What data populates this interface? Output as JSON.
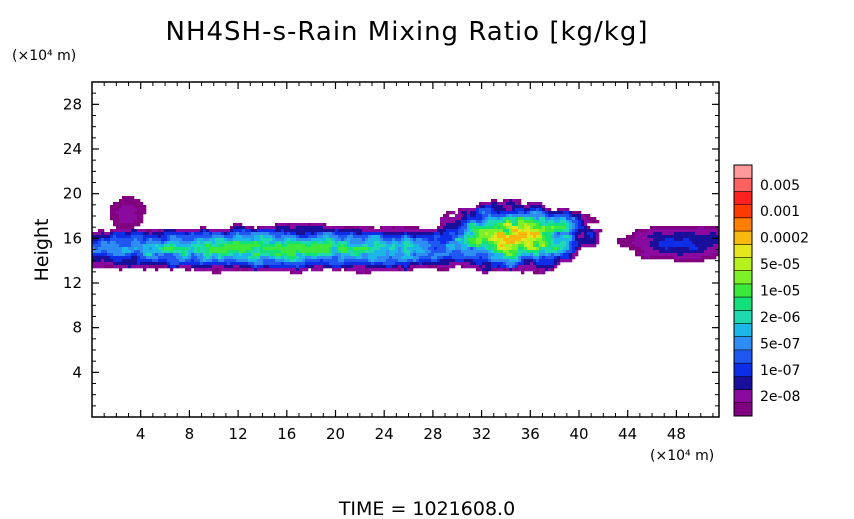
{
  "chart_data": {
    "type": "heatmap",
    "title": "NH4SH-s-Rain Mixing Ratio [kg/kg]",
    "xlabel": "",
    "ylabel": "Height",
    "x_unit": "(×10⁴ m)",
    "y_unit": "(×10⁴ m)",
    "xlim": [
      0,
      51.5
    ],
    "ylim": [
      0,
      30
    ],
    "x_ticks": [
      4,
      8,
      12,
      16,
      20,
      24,
      28,
      32,
      36,
      40,
      44,
      48
    ],
    "y_ticks": [
      4,
      8,
      12,
      16,
      20,
      24,
      28
    ],
    "colorbar": {
      "levels": [
        {
          "label": "",
          "color": "#800080"
        },
        {
          "label": "2e-08",
          "color": "#8a0aa0"
        },
        {
          "label": "",
          "color": "#1a0f9a"
        },
        {
          "label": "1e-07",
          "color": "#0d2ee6"
        },
        {
          "label": "",
          "color": "#1f57f0"
        },
        {
          "label": "5e-07",
          "color": "#2e8cf2"
        },
        {
          "label": "",
          "color": "#1cb6e8"
        },
        {
          "label": "2e-06",
          "color": "#1fd9b0"
        },
        {
          "label": "",
          "color": "#12e07a"
        },
        {
          "label": "1e-05",
          "color": "#3ce83c"
        },
        {
          "label": "",
          "color": "#7ef02a"
        },
        {
          "label": "5e-05",
          "color": "#b8f01e"
        },
        {
          "label": "",
          "color": "#e6e61e"
        },
        {
          "label": "0.0002",
          "color": "#f7b80f"
        },
        {
          "label": "",
          "color": "#ff7f00"
        },
        {
          "label": "0.001",
          "color": "#ff3a00"
        },
        {
          "label": "",
          "color": "#ff2020"
        },
        {
          "label": "0.005",
          "color": "#ff6060"
        },
        {
          "label": "",
          "color": "#ff9a9a"
        }
      ]
    },
    "regions": [
      {
        "name": "cloud-band-main",
        "x": [
          0,
          30.5
        ],
        "y": [
          13.2,
          17.0
        ],
        "max_level": "1e-05"
      },
      {
        "name": "cloud-cell-32-36",
        "x": [
          30.5,
          39.0
        ],
        "y": [
          13.3,
          19.0
        ],
        "max_level": "0.0002"
      },
      {
        "name": "isolated-patch-2-4",
        "x": [
          2.0,
          3.8
        ],
        "y": [
          16.8,
          19.6
        ],
        "max_level": "2e-08"
      },
      {
        "name": "edge-patch-46-51",
        "x": [
          45.5,
          51.5
        ],
        "y": [
          14.0,
          17.2
        ],
        "max_level": "1e-07"
      }
    ]
  },
  "footer": {
    "time_label": "TIME  =  1021608.0"
  }
}
